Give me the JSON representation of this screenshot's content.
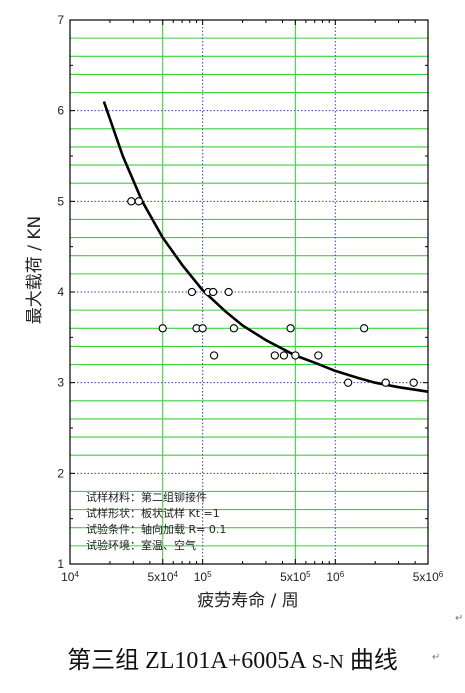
{
  "chart_data": {
    "type": "scatter",
    "x_scale": "log",
    "xlim": [
      10000,
      5000000
    ],
    "ylim": [
      1,
      7
    ],
    "x_tick_values": [
      10000,
      50000,
      100000,
      500000,
      1000000,
      5000000
    ],
    "x_tick_labels": [
      {
        "base": "10",
        "exp": "4"
      },
      {
        "base": "5x10",
        "exp": "4"
      },
      {
        "base": "10",
        "exp": "5"
      },
      {
        "base": "5x10",
        "exp": "5"
      },
      {
        "base": "10",
        "exp": "6"
      },
      {
        "base": "5x10",
        "exp": "6"
      }
    ],
    "y_ticks": [
      "1",
      "2",
      "3",
      "4",
      "5",
      "6",
      "7"
    ],
    "xlabel": "疲劳寿命 / 周",
    "ylabel": "最大载荷 / KN",
    "grid": true,
    "points": [
      {
        "x": 29000,
        "y": 5.0
      },
      {
        "x": 33000,
        "y": 5.0
      },
      {
        "x": 50000,
        "y": 3.6
      },
      {
        "x": 83000,
        "y": 4.0
      },
      {
        "x": 90000,
        "y": 3.6
      },
      {
        "x": 100000,
        "y": 3.6
      },
      {
        "x": 110000,
        "y": 4.0
      },
      {
        "x": 120000,
        "y": 4.0
      },
      {
        "x": 122000,
        "y": 3.3
      },
      {
        "x": 157000,
        "y": 4.0
      },
      {
        "x": 172000,
        "y": 3.6
      },
      {
        "x": 350000,
        "y": 3.3
      },
      {
        "x": 410000,
        "y": 3.3
      },
      {
        "x": 460000,
        "y": 3.6
      },
      {
        "x": 500000,
        "y": 3.3
      },
      {
        "x": 745000,
        "y": 3.3
      },
      {
        "x": 1250000,
        "y": 3.0
      },
      {
        "x": 1650000,
        "y": 3.6
      },
      {
        "x": 2400000,
        "y": 3.0
      },
      {
        "x": 3900000,
        "y": 3.0
      }
    ],
    "fit_curve": [
      {
        "x": 18000,
        "y": 6.1
      },
      {
        "x": 25000,
        "y": 5.5
      },
      {
        "x": 35000,
        "y": 5.0
      },
      {
        "x": 50000,
        "y": 4.6
      },
      {
        "x": 70000,
        "y": 4.3
      },
      {
        "x": 100000,
        "y": 4.02
      },
      {
        "x": 150000,
        "y": 3.78
      },
      {
        "x": 200000,
        "y": 3.63
      },
      {
        "x": 300000,
        "y": 3.47
      },
      {
        "x": 500000,
        "y": 3.3
      },
      {
        "x": 700000,
        "y": 3.22
      },
      {
        "x": 1000000,
        "y": 3.13
      },
      {
        "x": 1500000,
        "y": 3.05
      },
      {
        "x": 2000000,
        "y": 3.0
      },
      {
        "x": 3000000,
        "y": 2.95
      },
      {
        "x": 5000000,
        "y": 2.9
      }
    ],
    "annotations": [
      "试样材料：第二组铆接件",
      "试样形状：板状试样 Kt =1",
      "试验条件：轴向加载 R= 0.1",
      "试验环境：室温、空气"
    ]
  },
  "caption": {
    "prefix": "第三组 ",
    "code": "ZL101A+6005A",
    "sn": " S-N",
    "suffix": " 曲线"
  },
  "caption_mark": "↵",
  "corner_mark": "↵"
}
